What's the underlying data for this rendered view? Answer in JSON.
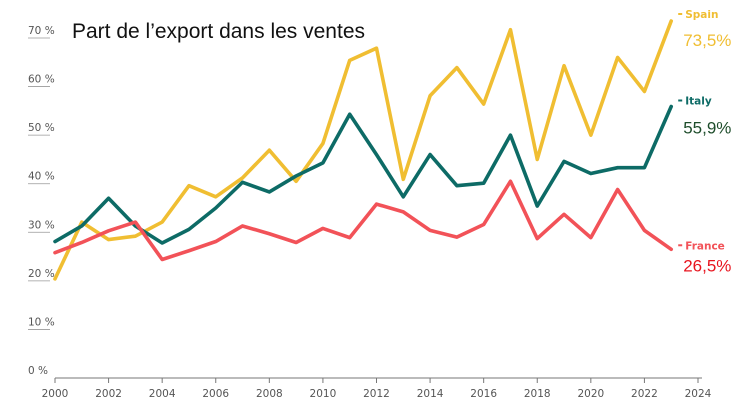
{
  "chart_data": {
    "type": "line",
    "title": "Part de l’export dans les ventes",
    "xlabel": "",
    "ylabel": "",
    "x": [
      2000,
      2001,
      2002,
      2003,
      2004,
      2005,
      2006,
      2007,
      2008,
      2009,
      2010,
      2011,
      2012,
      2013,
      2014,
      2015,
      2016,
      2017,
      2018,
      2019,
      2020,
      2021,
      2022,
      2023
    ],
    "xlim": [
      2000,
      2024
    ],
    "ylim": [
      0,
      70
    ],
    "x_ticks": [
      "2000",
      "2002",
      "2004",
      "2006",
      "2008",
      "2010",
      "2012",
      "2014",
      "2016",
      "2018",
      "2020",
      "2022",
      "2024"
    ],
    "y_ticks": [
      "0 %",
      "10 %",
      "20 %",
      "30 %",
      "40 %",
      "50 %",
      "60 %",
      "70 %"
    ],
    "grid": false,
    "series": [
      {
        "name": "Spain",
        "color": "#F0BE32",
        "end_label": "73,5%",
        "values": [
          20.4,
          32.1,
          28.5,
          29.2,
          32.1,
          39.6,
          37.3,
          41.2,
          46.9,
          40.5,
          48.3,
          65.4,
          67.9,
          40.9,
          58.1,
          63.9,
          56.4,
          71.7,
          45.0,
          64.3,
          50.0,
          66.0,
          59.0,
          73.5
        ]
      },
      {
        "name": "Italy",
        "color": "#0D6B66",
        "end_label": "55,9%",
        "values": [
          28.1,
          31.3,
          37.0,
          31.3,
          27.8,
          30.6,
          35.0,
          40.3,
          38.3,
          41.6,
          44.3,
          54.3,
          46.0,
          37.3,
          46.0,
          39.6,
          40.1,
          50.0,
          35.4,
          44.6,
          42.1,
          43.3,
          43.3,
          55.9
        ]
      },
      {
        "name": "France",
        "color": "#F25258",
        "end_label": "26,5%",
        "values": [
          25.8,
          27.9,
          30.3,
          32.1,
          24.4,
          26.2,
          28.1,
          31.3,
          29.7,
          27.9,
          30.8,
          28.9,
          35.8,
          34.2,
          30.4,
          29.0,
          31.6,
          40.5,
          28.7,
          33.7,
          28.9,
          38.8,
          30.4,
          26.5
        ]
      }
    ]
  }
}
